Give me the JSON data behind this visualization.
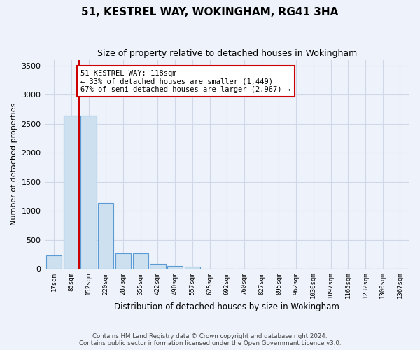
{
  "title": "51, KESTREL WAY, WOKINGHAM, RG41 3HA",
  "subtitle": "Size of property relative to detached houses in Wokingham",
  "xlabel": "Distribution of detached houses by size in Wokingham",
  "ylabel": "Number of detached properties",
  "categories": [
    "17sqm",
    "85sqm",
    "152sqm",
    "220sqm",
    "287sqm",
    "355sqm",
    "422sqm",
    "490sqm",
    "557sqm",
    "625sqm",
    "692sqm",
    "760sqm",
    "827sqm",
    "895sqm",
    "962sqm",
    "1030sqm",
    "1097sqm",
    "1165sqm",
    "1232sqm",
    "1300sqm",
    "1367sqm"
  ],
  "values": [
    230,
    2640,
    2640,
    1130,
    260,
    260,
    80,
    45,
    30,
    0,
    0,
    0,
    0,
    0,
    0,
    0,
    0,
    0,
    0,
    0,
    0
  ],
  "bar_color": "#cce0f0",
  "bar_edge_color": "#5b9bd5",
  "property_line_x": 1.45,
  "property_line_color": "#cc0000",
  "annotation_text": "51 KESTREL WAY: 118sqm\n← 33% of detached houses are smaller (1,449)\n67% of semi-detached houses are larger (2,967) →",
  "annotation_box_color": "white",
  "annotation_box_edge_color": "#cc0000",
  "ylim": [
    0,
    3600
  ],
  "yticks": [
    0,
    500,
    1000,
    1500,
    2000,
    2500,
    3000,
    3500
  ],
  "grid_color": "#d0d8e8",
  "background_color": "#eef2fa",
  "footer_line1": "Contains HM Land Registry data © Crown copyright and database right 2024.",
  "footer_line2": "Contains public sector information licensed under the Open Government Licence v3.0."
}
